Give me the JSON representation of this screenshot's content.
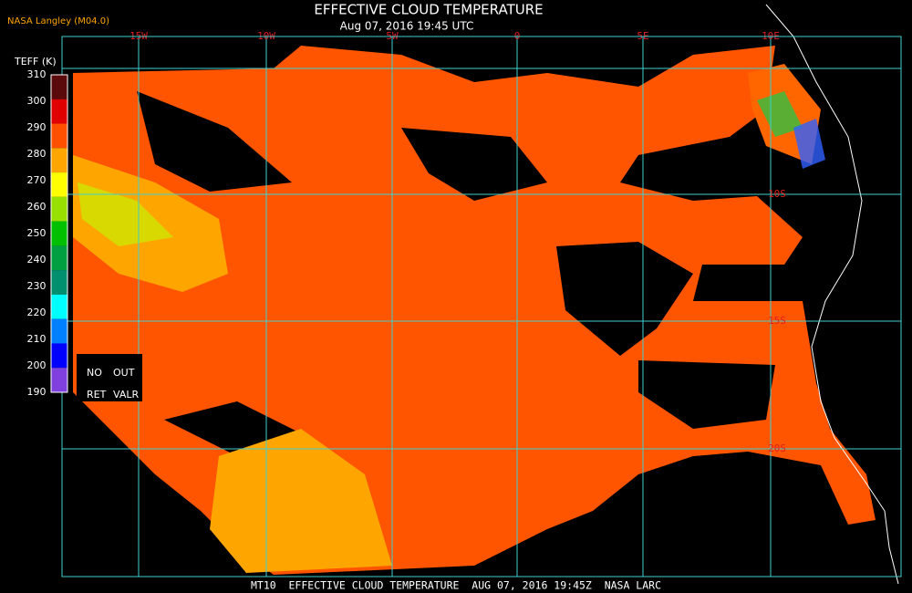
{
  "header": {
    "title": "EFFECTIVE CLOUD TEMPERATURE",
    "subtitle": "Aug 07, 2016 19:45 UTC",
    "credit": "NASA Langley (M04.0)"
  },
  "colorbar": {
    "label": "TEFF (K)",
    "ticks": [
      310,
      300,
      290,
      280,
      270,
      260,
      250,
      240,
      230,
      220,
      210,
      200,
      190
    ],
    "colors": [
      "#5a0a0a",
      "#e00000",
      "#ff5000",
      "#ffa500",
      "#ffff00",
      "#98e000",
      "#00c000",
      "#00a040",
      "#009070",
      "#00ffff",
      "#0080ff",
      "#0000ff",
      "#8040e0"
    ],
    "no_ret": [
      "NO",
      "RET"
    ],
    "out_valr": [
      "OUT",
      "VALR"
    ]
  },
  "map": {
    "lon_labels": [
      "15W",
      "10W",
      "5W",
      "0",
      "5E",
      "10E"
    ],
    "lat_labels": [
      "10S",
      "15S",
      "20S"
    ]
  },
  "footer": "MT10  EFFECTIVE CLOUD TEMPERATURE  AUG 07, 2016 19:45Z  NASA LARC"
}
